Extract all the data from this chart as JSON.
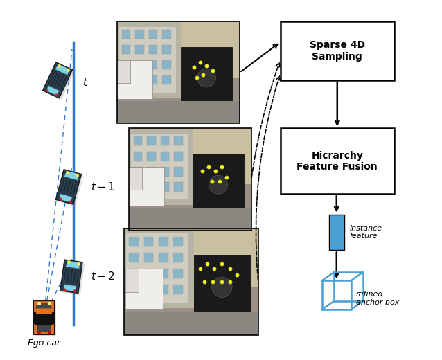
{
  "bg_color": "#ffffff",
  "blue_color": "#4a9fd4",
  "blue_line_color": "#3377cc",
  "black": "#000000",
  "sparse4d_text": "Sparse 4D\nSampling",
  "hierarchy_text": "Hicrarchy\nFeature Fusion",
  "instance_label": "instance\nfeature",
  "anchor_label": "refined\nanchor box",
  "ego_label": "Ego car",
  "time_labels": [
    "t",
    "t-1",
    "t-2"
  ],
  "car_dark_body": "#2a3d4d",
  "car_dark_window": "#7dd4e8",
  "car_orange_body": "#E07020",
  "car_orange_window": "#222222",
  "yellow_dot": "#ffff00",
  "figsize": [
    6.38,
    5.2
  ],
  "dpi": 100
}
